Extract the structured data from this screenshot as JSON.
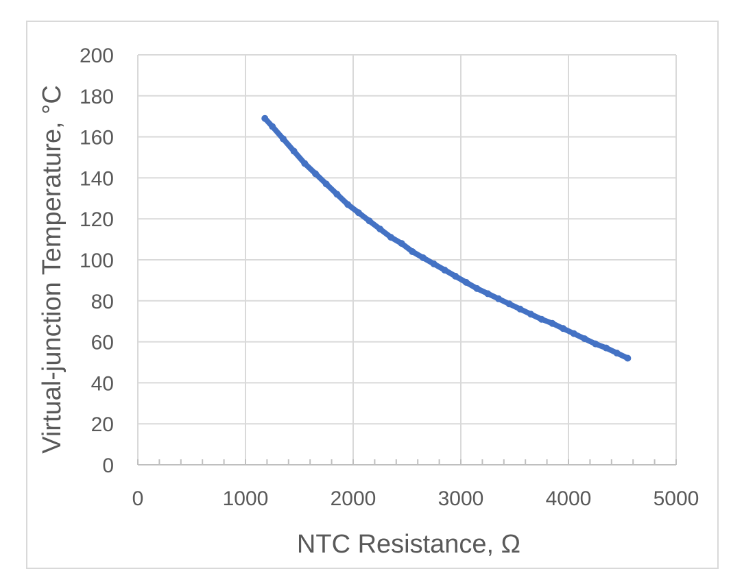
{
  "chart_data": {
    "type": "scatter",
    "title": "",
    "xlabel": "NTC Resistance, Ω",
    "ylabel": "Virtual-junction Temperature, °C",
    "xlim": [
      0,
      5000
    ],
    "ylim": [
      0,
      200
    ],
    "x_ticks": [
      0,
      1000,
      2000,
      3000,
      4000,
      5000
    ],
    "y_ticks": [
      0,
      20,
      40,
      60,
      80,
      100,
      120,
      140,
      160,
      180,
      200
    ],
    "x_tick_labels": [
      "0",
      "1000",
      "2000",
      "3000",
      "4000",
      "5000"
    ],
    "y_tick_labels": [
      "0",
      "20",
      "40",
      "60",
      "80",
      "100",
      "120",
      "140",
      "160",
      "180",
      "200"
    ],
    "grid": true,
    "legend": "none",
    "series": [
      {
        "color": "#4472c4",
        "marker": "circle",
        "x": [
          1180,
          1250,
          1350,
          1450,
          1550,
          1650,
          1750,
          1850,
          1950,
          2050,
          2150,
          2250,
          2350,
          2450,
          2550,
          2650,
          2750,
          2850,
          2950,
          3050,
          3150,
          3250,
          3350,
          3450,
          3550,
          3650,
          3750,
          3850,
          3950,
          4050,
          4150,
          4250,
          4350,
          4450,
          4550
        ],
        "y": [
          169,
          165,
          159,
          153,
          147,
          142,
          137,
          132,
          127,
          123,
          119,
          115,
          111,
          108,
          104,
          101,
          98,
          95,
          92,
          89,
          86,
          83.5,
          81,
          78.5,
          76,
          73.5,
          71,
          69,
          66.5,
          64,
          61.5,
          59,
          57,
          54.5,
          52
        ]
      }
    ]
  }
}
